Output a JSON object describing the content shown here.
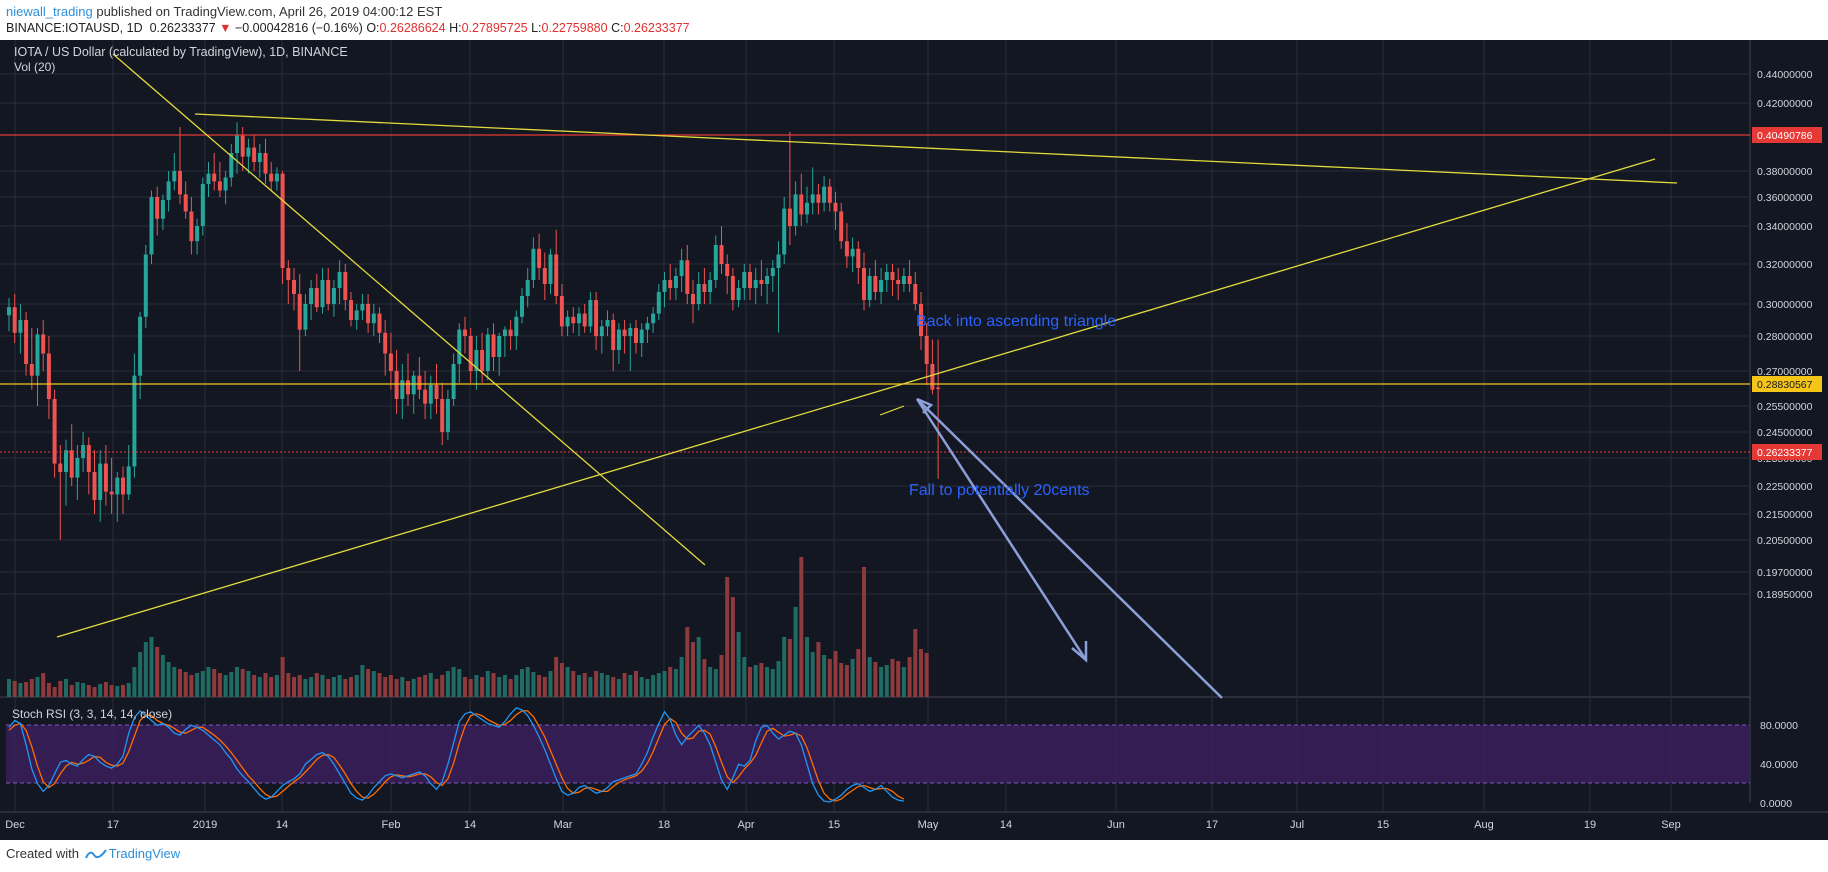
{
  "header": {
    "author": "niewall_trading",
    "published_text": " published on TradingView.com, April 26, 2019 04:00:12 EST",
    "symbol": "BINANCE:IOTAUSD, 1D",
    "last": "0.26233377",
    "change": "−0.00042816 (−0.16%)",
    "o_label": "O:",
    "o_value": "0.26286624",
    "h_label": "H:",
    "h_value": "0.27895725",
    "l_label": "L:",
    "l_value": "0.22759880",
    "c_label": "C:",
    "c_value": "0.26233377"
  },
  "footer": {
    "created_with": "Created with",
    "brand": "TradingView"
  },
  "chart_data": {
    "type": "candlestick",
    "title": "IOTA / US Dollar (calculated by TradingView), 1D, BINANCE",
    "volume_label": "Vol (20)",
    "oscillator_label": "Stoch RSI (3, 3, 14, 14, close)",
    "y_ticks": [
      "0.44000000",
      "0.42000000",
      "0.40000000",
      "0.38000000",
      "0.36000000",
      "0.34000000",
      "0.32000000",
      "0.30000000",
      "0.28000000",
      "0.27000000",
      "0.25500000",
      "0.24500000",
      "0.23500000",
      "0.22500000",
      "0.21500000",
      "0.20500000",
      "0.19700000",
      "0.18950000"
    ],
    "price_tags": [
      {
        "label": "0.40490786",
        "color": "#e53935"
      },
      {
        "label": "0.28830567",
        "color": "#f5c518"
      },
      {
        "label": "0.26233377",
        "color": "#e53935"
      }
    ],
    "osc_ticks": [
      "80.0000",
      "40.0000",
      "0.0000"
    ],
    "x_ticks": [
      "Dec",
      "17",
      "2019",
      "14",
      "Feb",
      "14",
      "Mar",
      "18",
      "Apr",
      "15",
      "May",
      "14",
      "Jun",
      "17",
      "Jul",
      "15",
      "Aug",
      "19",
      "Sep"
    ],
    "annotations": [
      "Back into ascending triangle",
      "Fall to potentially 20cents"
    ],
    "colors": {
      "background": "#131722",
      "up": "#26a69a",
      "down": "#ef5350",
      "trendline": "#e3db3c",
      "annotation_text": "#2962ff",
      "arrow": "#8c9fd8",
      "stoch_k": "#2196f3",
      "stoch_d": "#ff6d00",
      "osc_band": "#3a1f5c"
    },
    "candles": [
      [
        0.293,
        0.303,
        0.283,
        0.298
      ],
      [
        0.298,
        0.305,
        0.278,
        0.282
      ],
      [
        0.282,
        0.3,
        0.275,
        0.29
      ],
      [
        0.29,
        0.295,
        0.268,
        0.272
      ],
      [
        0.272,
        0.285,
        0.262,
        0.268
      ],
      [
        0.268,
        0.285,
        0.255,
        0.281
      ],
      [
        0.281,
        0.29,
        0.27,
        0.275
      ],
      [
        0.275,
        0.28,
        0.25,
        0.258
      ],
      [
        0.258,
        0.262,
        0.228,
        0.233
      ],
      [
        0.233,
        0.24,
        0.205,
        0.23
      ],
      [
        0.23,
        0.242,
        0.218,
        0.238
      ],
      [
        0.238,
        0.248,
        0.225,
        0.228
      ],
      [
        0.228,
        0.24,
        0.22,
        0.235
      ],
      [
        0.235,
        0.245,
        0.23,
        0.24
      ],
      [
        0.24,
        0.243,
        0.222,
        0.23
      ],
      [
        0.23,
        0.238,
        0.215,
        0.22
      ],
      [
        0.22,
        0.238,
        0.212,
        0.233
      ],
      [
        0.233,
        0.24,
        0.218,
        0.223
      ],
      [
        0.223,
        0.235,
        0.215,
        0.222
      ],
      [
        0.222,
        0.23,
        0.212,
        0.228
      ],
      [
        0.228,
        0.232,
        0.215,
        0.222
      ],
      [
        0.222,
        0.24,
        0.22,
        0.232
      ],
      [
        0.232,
        0.275,
        0.228,
        0.268
      ],
      [
        0.268,
        0.295,
        0.258,
        0.292
      ],
      [
        0.292,
        0.33,
        0.285,
        0.325
      ],
      [
        0.325,
        0.365,
        0.32,
        0.36
      ],
      [
        0.36,
        0.368,
        0.335,
        0.345
      ],
      [
        0.345,
        0.362,
        0.338,
        0.358
      ],
      [
        0.358,
        0.38,
        0.35,
        0.372
      ],
      [
        0.372,
        0.39,
        0.365,
        0.38
      ],
      [
        0.38,
        0.405,
        0.355,
        0.362
      ],
      [
        0.362,
        0.372,
        0.345,
        0.35
      ],
      [
        0.35,
        0.36,
        0.325,
        0.332
      ],
      [
        0.332,
        0.345,
        0.325,
        0.34
      ],
      [
        0.34,
        0.375,
        0.335,
        0.37
      ],
      [
        0.37,
        0.385,
        0.36,
        0.378
      ],
      [
        0.378,
        0.39,
        0.365,
        0.372
      ],
      [
        0.372,
        0.385,
        0.36,
        0.365
      ],
      [
        0.365,
        0.38,
        0.355,
        0.375
      ],
      [
        0.375,
        0.395,
        0.368,
        0.39
      ],
      [
        0.39,
        0.408,
        0.378,
        0.4
      ],
      [
        0.4,
        0.405,
        0.38,
        0.388
      ],
      [
        0.388,
        0.398,
        0.378,
        0.393
      ],
      [
        0.393,
        0.4,
        0.38,
        0.385
      ],
      [
        0.385,
        0.395,
        0.375,
        0.39
      ],
      [
        0.39,
        0.398,
        0.37,
        0.378
      ],
      [
        0.378,
        0.385,
        0.365,
        0.372
      ],
      [
        0.372,
        0.382,
        0.365,
        0.378
      ],
      [
        0.378,
        0.38,
        0.31,
        0.318
      ],
      [
        0.318,
        0.322,
        0.3,
        0.312
      ],
      [
        0.312,
        0.318,
        0.296,
        0.305
      ],
      [
        0.305,
        0.315,
        0.27,
        0.284
      ],
      [
        0.284,
        0.305,
        0.28,
        0.3
      ],
      [
        0.3,
        0.312,
        0.29,
        0.308
      ],
      [
        0.308,
        0.315,
        0.295,
        0.298
      ],
      [
        0.298,
        0.318,
        0.294,
        0.312
      ],
      [
        0.312,
        0.318,
        0.296,
        0.3
      ],
      [
        0.3,
        0.312,
        0.292,
        0.308
      ],
      [
        0.308,
        0.322,
        0.3,
        0.316
      ],
      [
        0.316,
        0.32,
        0.296,
        0.302
      ],
      [
        0.302,
        0.306,
        0.286,
        0.29
      ],
      [
        0.29,
        0.3,
        0.284,
        0.296
      ],
      [
        0.296,
        0.305,
        0.29,
        0.3
      ],
      [
        0.3,
        0.305,
        0.282,
        0.288
      ],
      [
        0.288,
        0.3,
        0.28,
        0.294
      ],
      [
        0.294,
        0.298,
        0.278,
        0.282
      ],
      [
        0.282,
        0.29,
        0.268,
        0.275
      ],
      [
        0.275,
        0.282,
        0.262,
        0.27
      ],
      [
        0.27,
        0.276,
        0.252,
        0.258
      ],
      [
        0.258,
        0.272,
        0.25,
        0.266
      ],
      [
        0.266,
        0.275,
        0.255,
        0.26
      ],
      [
        0.26,
        0.27,
        0.252,
        0.268
      ],
      [
        0.268,
        0.274,
        0.258,
        0.262
      ],
      [
        0.262,
        0.27,
        0.25,
        0.256
      ],
      [
        0.256,
        0.268,
        0.25,
        0.264
      ],
      [
        0.264,
        0.272,
        0.252,
        0.258
      ],
      [
        0.258,
        0.265,
        0.24,
        0.245
      ],
      [
        0.245,
        0.262,
        0.242,
        0.258
      ],
      [
        0.258,
        0.275,
        0.255,
        0.272
      ],
      [
        0.272,
        0.288,
        0.265,
        0.284
      ],
      [
        0.284,
        0.292,
        0.275,
        0.28
      ],
      [
        0.28,
        0.285,
        0.265,
        0.27
      ],
      [
        0.27,
        0.28,
        0.262,
        0.276
      ],
      [
        0.276,
        0.282,
        0.265,
        0.27
      ],
      [
        0.27,
        0.285,
        0.266,
        0.281
      ],
      [
        0.281,
        0.288,
        0.27,
        0.274
      ],
      [
        0.274,
        0.282,
        0.268,
        0.28
      ],
      [
        0.28,
        0.286,
        0.274,
        0.284
      ],
      [
        0.284,
        0.29,
        0.276,
        0.28
      ],
      [
        0.28,
        0.296,
        0.276,
        0.292
      ],
      [
        0.292,
        0.308,
        0.288,
        0.304
      ],
      [
        0.304,
        0.318,
        0.298,
        0.312
      ],
      [
        0.312,
        0.334,
        0.308,
        0.328
      ],
      [
        0.328,
        0.336,
        0.312,
        0.318
      ],
      [
        0.318,
        0.326,
        0.302,
        0.31
      ],
      [
        0.31,
        0.328,
        0.305,
        0.325
      ],
      [
        0.325,
        0.338,
        0.3,
        0.304
      ],
      [
        0.304,
        0.31,
        0.28,
        0.286
      ],
      [
        0.286,
        0.296,
        0.28,
        0.292
      ],
      [
        0.292,
        0.298,
        0.282,
        0.288
      ],
      [
        0.288,
        0.298,
        0.28,
        0.294
      ],
      [
        0.294,
        0.3,
        0.282,
        0.286
      ],
      [
        0.286,
        0.306,
        0.282,
        0.302
      ],
      [
        0.302,
        0.306,
        0.276,
        0.28
      ],
      [
        0.28,
        0.29,
        0.275,
        0.286
      ],
      [
        0.286,
        0.296,
        0.28,
        0.29
      ],
      [
        0.29,
        0.294,
        0.27,
        0.276
      ],
      [
        0.276,
        0.288,
        0.272,
        0.284
      ],
      [
        0.284,
        0.29,
        0.275,
        0.28
      ],
      [
        0.28,
        0.288,
        0.27,
        0.285
      ],
      [
        0.285,
        0.29,
        0.275,
        0.278
      ],
      [
        0.278,
        0.288,
        0.274,
        0.284
      ],
      [
        0.284,
        0.292,
        0.278,
        0.288
      ],
      [
        0.288,
        0.298,
        0.282,
        0.294
      ],
      [
        0.294,
        0.31,
        0.29,
        0.306
      ],
      [
        0.306,
        0.316,
        0.298,
        0.312
      ],
      [
        0.312,
        0.32,
        0.302,
        0.308
      ],
      [
        0.308,
        0.318,
        0.302,
        0.314
      ],
      [
        0.314,
        0.328,
        0.306,
        0.322
      ],
      [
        0.322,
        0.33,
        0.3,
        0.305
      ],
      [
        0.305,
        0.312,
        0.288,
        0.3
      ],
      [
        0.3,
        0.316,
        0.296,
        0.31
      ],
      [
        0.31,
        0.318,
        0.3,
        0.306
      ],
      [
        0.306,
        0.316,
        0.3,
        0.312
      ],
      [
        0.312,
        0.335,
        0.308,
        0.33
      ],
      [
        0.33,
        0.34,
        0.315,
        0.32
      ],
      [
        0.32,
        0.325,
        0.305,
        0.314
      ],
      [
        0.314,
        0.318,
        0.296,
        0.302
      ],
      [
        0.302,
        0.312,
        0.298,
        0.308
      ],
      [
        0.308,
        0.32,
        0.302,
        0.316
      ],
      [
        0.316,
        0.32,
        0.302,
        0.308
      ],
      [
        0.308,
        0.318,
        0.3,
        0.312
      ],
      [
        0.312,
        0.322,
        0.304,
        0.31
      ],
      [
        0.31,
        0.318,
        0.3,
        0.314
      ],
      [
        0.314,
        0.322,
        0.306,
        0.318
      ],
      [
        0.318,
        0.332,
        0.282,
        0.325
      ],
      [
        0.325,
        0.36,
        0.32,
        0.352
      ],
      [
        0.352,
        0.402,
        0.33,
        0.34
      ],
      [
        0.34,
        0.372,
        0.335,
        0.362
      ],
      [
        0.362,
        0.378,
        0.34,
        0.348
      ],
      [
        0.348,
        0.368,
        0.342,
        0.356
      ],
      [
        0.356,
        0.382,
        0.348,
        0.362
      ],
      [
        0.362,
        0.37,
        0.348,
        0.356
      ],
      [
        0.356,
        0.376,
        0.35,
        0.368
      ],
      [
        0.368,
        0.374,
        0.35,
        0.356
      ],
      [
        0.356,
        0.364,
        0.338,
        0.35
      ],
      [
        0.35,
        0.356,
        0.328,
        0.332
      ],
      [
        0.332,
        0.342,
        0.318,
        0.324
      ],
      [
        0.324,
        0.334,
        0.316,
        0.328
      ],
      [
        0.328,
        0.332,
        0.31,
        0.318
      ],
      [
        0.318,
        0.326,
        0.296,
        0.302
      ],
      [
        0.302,
        0.318,
        0.298,
        0.314
      ],
      [
        0.314,
        0.322,
        0.302,
        0.306
      ],
      [
        0.306,
        0.318,
        0.3,
        0.312
      ],
      [
        0.312,
        0.32,
        0.306,
        0.316
      ],
      [
        0.316,
        0.32,
        0.304,
        0.312
      ],
      [
        0.312,
        0.318,
        0.302,
        0.31
      ],
      [
        0.31,
        0.318,
        0.306,
        0.314
      ],
      [
        0.314,
        0.322,
        0.306,
        0.31
      ],
      [
        0.31,
        0.316,
        0.296,
        0.3
      ],
      [
        0.3,
        0.306,
        0.276,
        0.28
      ],
      [
        0.28,
        0.288,
        0.264,
        0.272
      ],
      [
        0.272,
        0.279,
        0.26,
        0.262
      ],
      [
        0.2629,
        0.279,
        0.2276,
        0.2623
      ]
    ],
    "volume": [
      18,
      16,
      14,
      15,
      18,
      20,
      24,
      14,
      10,
      16,
      18,
      12,
      15,
      14,
      12,
      10,
      13,
      15,
      12,
      11,
      12,
      14,
      30,
      45,
      55,
      60,
      50,
      42,
      35,
      30,
      28,
      25,
      22,
      24,
      26,
      30,
      28,
      24,
      22,
      25,
      30,
      28,
      26,
      22,
      20,
      24,
      20,
      22,
      40,
      24,
      20,
      22,
      18,
      20,
      24,
      22,
      18,
      20,
      22,
      18,
      20,
      22,
      32,
      28,
      26,
      24,
      20,
      22,
      18,
      20,
      16,
      18,
      20,
      22,
      24,
      18,
      22,
      26,
      30,
      28,
      20,
      18,
      22,
      20,
      26,
      24,
      20,
      22,
      18,
      22,
      28,
      30,
      25,
      22,
      20,
      26,
      40,
      34,
      30,
      26,
      22,
      24,
      20,
      26,
      24,
      22,
      20,
      18,
      24,
      22,
      26,
      20,
      18,
      22,
      24,
      26,
      30,
      28,
      40,
      70,
      55,
      60,
      38,
      30,
      28,
      42,
      120,
      100,
      65,
      40,
      30,
      32,
      34,
      30,
      28,
      36,
      60,
      58,
      90,
      140,
      60,
      45,
      55,
      42,
      38,
      46,
      34,
      32,
      38,
      48,
      130,
      40,
      35,
      30,
      32,
      38,
      36,
      30,
      40,
      68,
      48,
      44
    ],
    "stoch_k": [
      78,
      85,
      82,
      60,
      35,
      20,
      12,
      18,
      30,
      42,
      44,
      40,
      38,
      45,
      50,
      48,
      42,
      38,
      36,
      40,
      48,
      72,
      88,
      95,
      90,
      85,
      80,
      82,
      78,
      72,
      70,
      76,
      80,
      78,
      75,
      70,
      65,
      60,
      52,
      45,
      35,
      28,
      22,
      15,
      8,
      4,
      6,
      12,
      18,
      22,
      25,
      30,
      40,
      45,
      50,
      52,
      48,
      40,
      30,
      20,
      10,
      5,
      3,
      8,
      16,
      22,
      28,
      30,
      28,
      26,
      28,
      30,
      32,
      28,
      20,
      14,
      22,
      40,
      62,
      84,
      92,
      94,
      90,
      86,
      82,
      80,
      78,
      84,
      92,
      98,
      96,
      90,
      80,
      68,
      55,
      40,
      25,
      12,
      8,
      10,
      16,
      18,
      14,
      10,
      12,
      16,
      22,
      24,
      26,
      28,
      30,
      40,
      52,
      68,
      82,
      94,
      86,
      70,
      60,
      68,
      74,
      80,
      72,
      60,
      42,
      24,
      14,
      26,
      40,
      38,
      44,
      64,
      78,
      80,
      72,
      66,
      70,
      74,
      72,
      60,
      40,
      20,
      8,
      2,
      1,
      4,
      8,
      14,
      18,
      20,
      16,
      12,
      14,
      18,
      12,
      6,
      3,
      2
    ],
    "stoch_d": [
      75,
      80,
      82,
      75,
      58,
      38,
      22,
      16,
      20,
      30,
      38,
      42,
      40,
      41,
      44,
      48,
      47,
      42,
      39,
      38,
      41,
      53,
      69,
      85,
      91,
      90,
      85,
      82,
      80,
      77,
      73,
      72,
      75,
      78,
      78,
      74,
      70,
      65,
      59,
      52,
      44,
      36,
      28,
      22,
      15,
      9,
      6,
      7,
      12,
      17,
      22,
      26,
      32,
      38,
      45,
      49,
      50,
      47,
      39,
      30,
      20,
      12,
      6,
      5,
      9,
      15,
      22,
      27,
      29,
      28,
      27,
      28,
      30,
      30,
      27,
      21,
      18,
      25,
      41,
      62,
      79,
      90,
      92,
      90,
      86,
      83,
      80,
      81,
      85,
      91,
      95,
      95,
      89,
      79,
      68,
      54,
      40,
      26,
      15,
      10,
      11,
      15,
      16,
      14,
      12,
      12,
      17,
      21,
      24,
      26,
      28,
      33,
      41,
      53,
      67,
      81,
      87,
      83,
      72,
      66,
      67,
      74,
      75,
      71,
      58,
      42,
      27,
      21,
      27,
      35,
      41,
      49,
      62,
      74,
      77,
      73,
      69,
      70,
      72,
      69,
      57,
      40,
      23,
      10,
      4,
      2,
      4,
      9,
      13,
      17,
      18,
      16,
      14,
      15,
      15,
      12,
      7,
      4
    ]
  }
}
